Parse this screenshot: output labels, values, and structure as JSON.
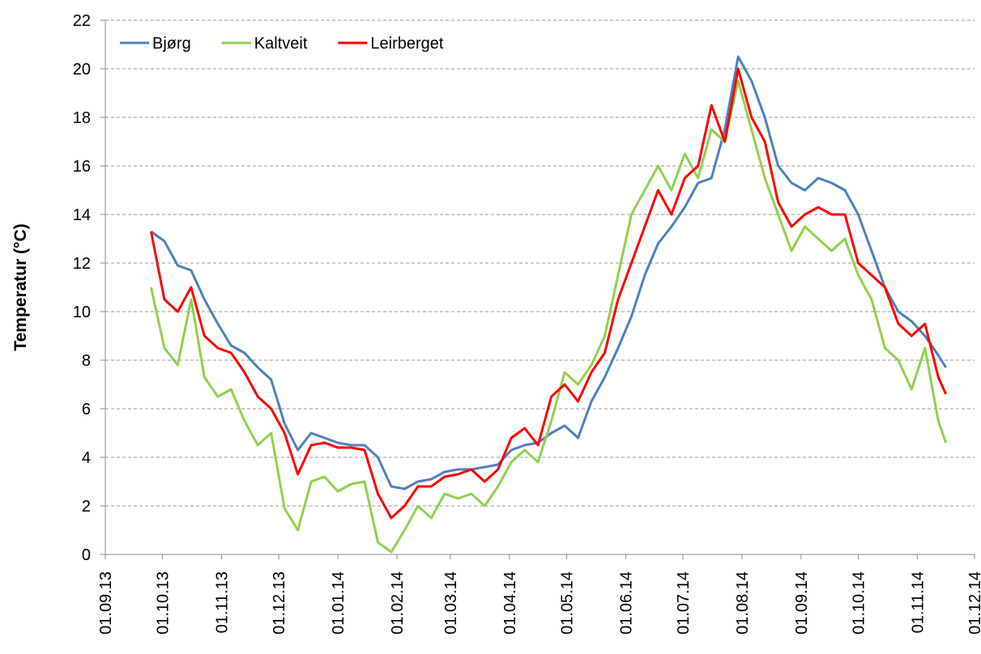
{
  "chart_data": {
    "type": "line",
    "ylabel": "Temperatur (°C)",
    "x": [
      "2013-09-25",
      "2013-10-02",
      "2013-10-09",
      "2013-10-16",
      "2013-10-23",
      "2013-10-30",
      "2013-11-06",
      "2013-11-13",
      "2013-11-20",
      "2013-11-27",
      "2013-12-04",
      "2013-12-11",
      "2013-12-18",
      "2013-12-25",
      "2014-01-01",
      "2014-01-08",
      "2014-01-15",
      "2014-01-22",
      "2014-01-29",
      "2014-02-05",
      "2014-02-12",
      "2014-02-19",
      "2014-02-26",
      "2014-03-05",
      "2014-03-12",
      "2014-03-19",
      "2014-03-26",
      "2014-04-02",
      "2014-04-09",
      "2014-04-16",
      "2014-04-23",
      "2014-04-30",
      "2014-05-07",
      "2014-05-14",
      "2014-05-21",
      "2014-05-28",
      "2014-06-04",
      "2014-06-11",
      "2014-06-18",
      "2014-06-25",
      "2014-07-02",
      "2014-07-09",
      "2014-07-16",
      "2014-07-23",
      "2014-07-30",
      "2014-08-06",
      "2014-08-13",
      "2014-08-20",
      "2014-08-27",
      "2014-09-03",
      "2014-09-10",
      "2014-09-17",
      "2014-09-24",
      "2014-10-01",
      "2014-10-08",
      "2014-10-15",
      "2014-10-22",
      "2014-10-29",
      "2014-11-05",
      "2014-11-12",
      "2014-11-16"
    ],
    "series": [
      {
        "name": "Bjørg",
        "color": "#4f81bd",
        "values": [
          13.3,
          12.9,
          11.9,
          11.7,
          10.5,
          9.5,
          8.6,
          8.3,
          7.7,
          7.2,
          5.4,
          4.3,
          5.0,
          4.8,
          4.6,
          4.5,
          4.5,
          4.0,
          2.8,
          2.7,
          3.0,
          3.1,
          3.4,
          3.5,
          3.5,
          3.6,
          3.7,
          4.3,
          4.5,
          4.6,
          5.0,
          5.3,
          4.8,
          6.3,
          7.3,
          8.5,
          9.8,
          11.5,
          12.8,
          13.5,
          14.3,
          15.3,
          15.5,
          17.5,
          20.5,
          19.5,
          18.0,
          16.0,
          15.3,
          15.0,
          15.5,
          15.3,
          15.0,
          14.0,
          12.5,
          11.0,
          10.0,
          9.6,
          9.0,
          8.2,
          7.7
        ]
      },
      {
        "name": "Kaltveit",
        "color": "#92d050",
        "values": [
          11.0,
          8.5,
          7.8,
          10.5,
          7.3,
          6.5,
          6.8,
          5.5,
          4.5,
          5.0,
          1.9,
          1.0,
          3.0,
          3.2,
          2.6,
          2.9,
          3.0,
          0.5,
          0.1,
          1.0,
          2.0,
          1.5,
          2.5,
          2.3,
          2.5,
          2.0,
          2.8,
          3.8,
          4.3,
          3.8,
          5.5,
          7.5,
          7.0,
          7.8,
          9.0,
          11.5,
          14.0,
          15.0,
          16.0,
          15.0,
          16.5,
          15.5,
          17.5,
          17.0,
          19.5,
          17.5,
          15.5,
          14.0,
          12.5,
          13.5,
          13.0,
          12.5,
          13.0,
          11.5,
          10.5,
          8.5,
          8.0,
          6.8,
          8.5,
          5.5,
          4.6
        ]
      },
      {
        "name": "Leirberget",
        "color": "#ff0000",
        "values": [
          13.3,
          10.5,
          10.0,
          11.0,
          9.0,
          8.5,
          8.3,
          7.5,
          6.5,
          6.0,
          5.0,
          3.3,
          4.5,
          4.6,
          4.4,
          4.4,
          4.3,
          2.5,
          1.5,
          2.0,
          2.8,
          2.8,
          3.2,
          3.3,
          3.5,
          3.0,
          3.5,
          4.8,
          5.2,
          4.5,
          6.5,
          7.0,
          6.3,
          7.5,
          8.3,
          10.5,
          12.0,
          13.5,
          15.0,
          14.0,
          15.5,
          16.0,
          18.5,
          17.0,
          20.0,
          18.0,
          17.0,
          14.5,
          13.5,
          14.0,
          14.3,
          14.0,
          14.0,
          12.0,
          11.5,
          11.0,
          9.5,
          9.0,
          9.5,
          7.3,
          6.6
        ]
      }
    ],
    "xlim": [
      "2013-09-01",
      "2014-12-01"
    ],
    "xticks": [
      {
        "value": "2013-09-01",
        "label": "01.09.13"
      },
      {
        "value": "2013-10-01",
        "label": "01.10.13"
      },
      {
        "value": "2013-11-01",
        "label": "01.11.13"
      },
      {
        "value": "2013-12-01",
        "label": "01.12.13"
      },
      {
        "value": "2014-01-01",
        "label": "01.01.14"
      },
      {
        "value": "2014-02-01",
        "label": "01.02.14"
      },
      {
        "value": "2014-03-01",
        "label": "01.03.14"
      },
      {
        "value": "2014-04-01",
        "label": "01.04.14"
      },
      {
        "value": "2014-05-01",
        "label": "01.05.14"
      },
      {
        "value": "2014-06-01",
        "label": "01.06.14"
      },
      {
        "value": "2014-07-01",
        "label": "01.07.14"
      },
      {
        "value": "2014-08-01",
        "label": "01.08.14"
      },
      {
        "value": "2014-09-01",
        "label": "01.09.14"
      },
      {
        "value": "2014-10-01",
        "label": "01.10.14"
      },
      {
        "value": "2014-11-01",
        "label": "01.11.14"
      },
      {
        "value": "2014-12-01",
        "label": "01.12.14"
      }
    ],
    "ylim": [
      0,
      22
    ],
    "yticks": [
      0,
      2,
      4,
      6,
      8,
      10,
      12,
      14,
      16,
      18,
      20,
      22
    ],
    "grid": true,
    "legend": "top-left"
  }
}
